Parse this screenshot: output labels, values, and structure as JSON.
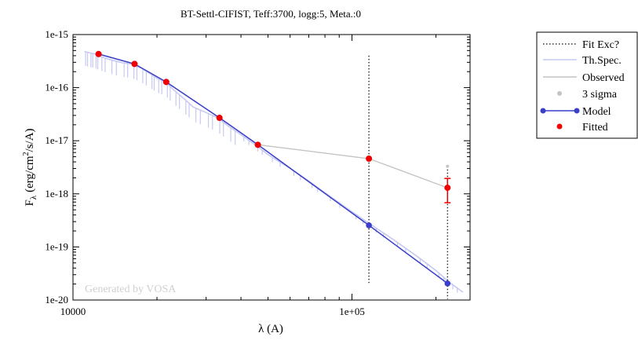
{
  "chart_data": {
    "type": "line",
    "title": "BT-Settl-CIFIST, Teff:3700, logg:5, Meta.:0",
    "xlabel": "λ (A)",
    "ylabel": {
      "main": "F",
      "sub": "λ",
      "unit_before": "(erg/cm",
      "unit_sup": "2",
      "unit_after": "/s/A)"
    },
    "xscale": "log",
    "yscale": "log",
    "xlim": [
      10000,
      265000
    ],
    "ylim": [
      1e-20,
      1e-15
    ],
    "x_ticks": [
      {
        "value": 10000,
        "label": "10000"
      },
      {
        "value": 100000,
        "label": "1e+05"
      }
    ],
    "y_ticks": [
      {
        "value": 1e-15,
        "label": "1e-15"
      },
      {
        "value": 1e-16,
        "label": "1e-16"
      },
      {
        "value": 1e-17,
        "label": "1e-17"
      },
      {
        "value": 1e-18,
        "label": "1e-18"
      },
      {
        "value": 1e-19,
        "label": "1e-19"
      },
      {
        "value": 1e-20,
        "label": "1e-20"
      }
    ],
    "watermark": "Generated by VOSA",
    "legend": {
      "placement": "outside-right",
      "entries": [
        {
          "label": "Fit Exc?",
          "style": "dotted-line",
          "color": "#000000"
        },
        {
          "label": "Th.Spec.",
          "style": "line",
          "color": "#c6c9f2"
        },
        {
          "label": "Observed",
          "style": "line",
          "color": "#c4c4c4"
        },
        {
          "label": "3 sigma",
          "style": "point",
          "color": "#c4c4c4"
        },
        {
          "label": "Model",
          "style": "line-point",
          "color": "#3a3fc9"
        },
        {
          "label": "Fitted",
          "style": "point",
          "color": "#ee0000"
        }
      ]
    },
    "series": [
      {
        "name": "Th.Spec.",
        "color": "#c6c9f2",
        "x": [
          11000,
          11500,
          12000,
          12500,
          13500,
          15000,
          16300,
          17500,
          19000,
          20000,
          21500,
          23000,
          25000,
          27000,
          30000,
          33000,
          36000,
          40000,
          45000,
          50000,
          60000,
          70000,
          80000,
          100000,
          118000,
          140000,
          170000,
          200000,
          225000,
          250000
        ],
        "y": [
          4.8e-16,
          4.5e-16,
          4.3e-16,
          3.9e-16,
          3.4e-16,
          2.95e-16,
          2.8e-16,
          2.35e-16,
          1.8e-16,
          1.5e-16,
          1.28e-16,
          9e-17,
          6.2e-17,
          4.3e-17,
          3.4e-17,
          2.7e-17,
          1.9e-17,
          1.3e-17,
          8.4e-18,
          5.5e-18,
          3e-18,
          1.75e-18,
          1.05e-18,
          4.6e-19,
          2.55e-19,
          1.4e-19,
          6.8e-20,
          3.6e-20,
          2.1e-20,
          1.4e-20
        ]
      },
      {
        "name": "Observed",
        "color": "#c4c4c4",
        "x": [
          12350,
          16620,
          21590,
          33500,
          46000,
          115000,
          220000
        ],
        "y": [
          4.3e-16,
          2.8e-16,
          1.28e-16,
          2.7e-17,
          8.4e-18,
          4.6e-18,
          1.3e-18
        ]
      },
      {
        "name": "Model",
        "color": "#3a3fc9",
        "x": [
          12350,
          16620,
          21590,
          33500,
          46000,
          115000,
          220000
        ],
        "y": [
          4.3e-16,
          2.8e-16,
          1.28e-16,
          2.7e-17,
          8.4e-18,
          2.55e-19,
          2.05e-20
        ]
      },
      {
        "name": "Fitted",
        "color": "#ee0000",
        "x": [
          12350,
          16620,
          21590,
          33500,
          46000,
          115000,
          220000
        ],
        "y": [
          4.3e-16,
          2.8e-16,
          1.28e-16,
          2.7e-17,
          8.4e-18,
          4.6e-18,
          1.3e-18
        ],
        "error": [
          null,
          null,
          null,
          null,
          null,
          null,
          {
            "low": 6.8e-19,
            "high": 1.95e-18
          }
        ]
      }
    ],
    "fit_excluded": [
      {
        "x": 115000,
        "y_range": [
          2.1e-20,
          4e-16
        ]
      },
      {
        "x": 220000,
        "y_range": [
          1.05e-20,
          3.3e-18
        ]
      }
    ],
    "three_sigma": [
      {
        "x": 220000,
        "y": 3.3e-18
      }
    ]
  }
}
